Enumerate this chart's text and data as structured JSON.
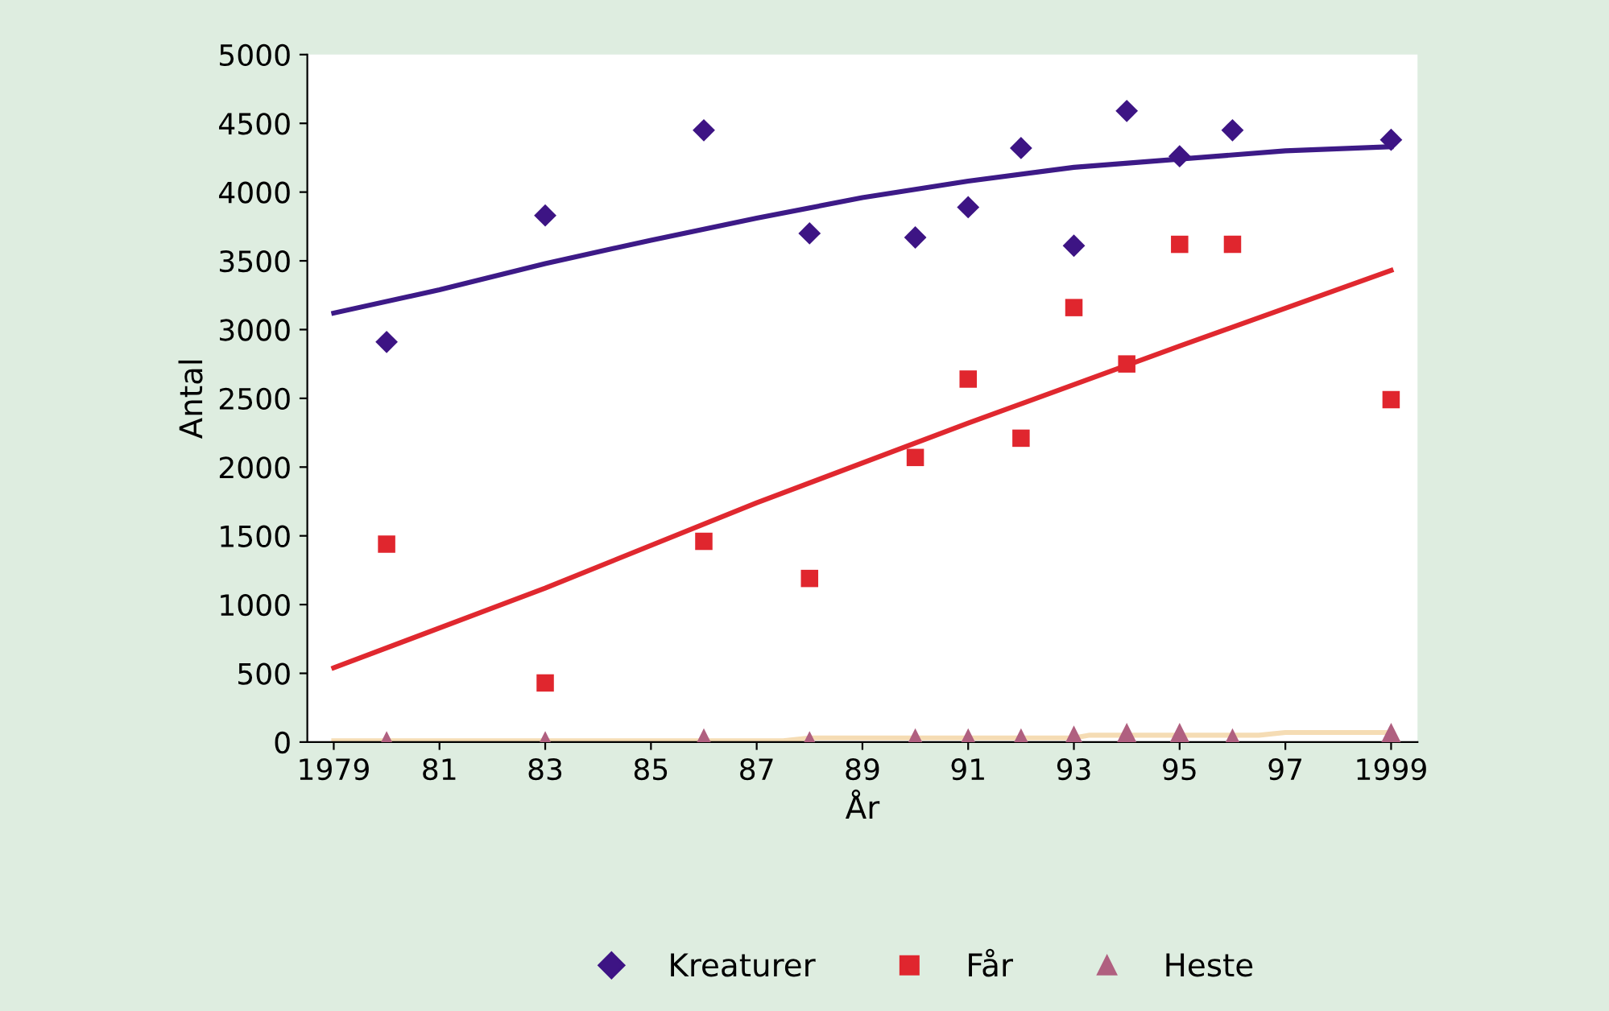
{
  "chart_data": {
    "type": "scatter",
    "xlabel": "År",
    "ylabel": "Antal",
    "xlim": [
      1978.5,
      1999.5
    ],
    "ylim": [
      0,
      5000
    ],
    "xticks": [
      {
        "value": 1979,
        "label": "1979"
      },
      {
        "value": 1981,
        "label": "81"
      },
      {
        "value": 1983,
        "label": "83"
      },
      {
        "value": 1985,
        "label": "85"
      },
      {
        "value": 1987,
        "label": "87"
      },
      {
        "value": 1989,
        "label": "89"
      },
      {
        "value": 1991,
        "label": "91"
      },
      {
        "value": 1993,
        "label": "93"
      },
      {
        "value": 1995,
        "label": "95"
      },
      {
        "value": 1997,
        "label": "97"
      },
      {
        "value": 1999,
        "label": "1999"
      }
    ],
    "yticks": [
      0,
      500,
      1000,
      1500,
      2000,
      2500,
      3000,
      3500,
      4000,
      4500,
      5000
    ],
    "grid": false,
    "legend": "bottom",
    "series": [
      {
        "name": "Kreaturer",
        "marker": "diamond",
        "color": "#3d1484",
        "x": [
          1980,
          1983,
          1986,
          1988,
          1990,
          1991,
          1992,
          1993,
          1994,
          1995,
          1996,
          1999
        ],
        "values": [
          2910,
          3830,
          4450,
          3700,
          3670,
          3890,
          4320,
          3610,
          4590,
          4260,
          4450,
          4380
        ]
      },
      {
        "name": "Får",
        "marker": "square",
        "color": "#e0262e",
        "x": [
          1980,
          1983,
          1986,
          1988,
          1990,
          1991,
          1992,
          1993,
          1994,
          1995,
          1996,
          1999
        ],
        "values": [
          1440,
          430,
          1460,
          1190,
          2070,
          2640,
          2210,
          3160,
          2750,
          3620,
          3620,
          2490
        ]
      },
      {
        "name": "Heste",
        "marker": "triangle",
        "color": "#b06080",
        "x": [
          1980,
          1983,
          1986,
          1988,
          1990,
          1991,
          1992,
          1993,
          1994,
          1995,
          1996,
          1999
        ],
        "values": [
          10,
          10,
          30,
          10,
          30,
          30,
          30,
          50,
          70,
          70,
          30,
          70
        ]
      },
      {
        "type": "line",
        "color": "#3d1a87",
        "x": [
          1979,
          1981,
          1983,
          1985,
          1987,
          1989,
          1991,
          1993,
          1995,
          1997,
          1999
        ],
        "values": [
          3120,
          3290,
          3480,
          3650,
          3810,
          3960,
          4080,
          4180,
          4240,
          4300,
          4330
        ]
      },
      {
        "type": "line",
        "color": "#e0282f",
        "x": [
          1979,
          1983,
          1987,
          1991,
          1995,
          1999
        ],
        "values": [
          540,
          1120,
          1740,
          2320,
          2880,
          3430
        ]
      },
      {
        "type": "line",
        "color": "#f5dcb4",
        "x": [
          1979,
          1987.5,
          1988,
          1993,
          1993.3,
          1996.5,
          1997,
          1999
        ],
        "values": [
          10,
          10,
          30,
          30,
          50,
          50,
          70,
          70
        ]
      }
    ]
  }
}
